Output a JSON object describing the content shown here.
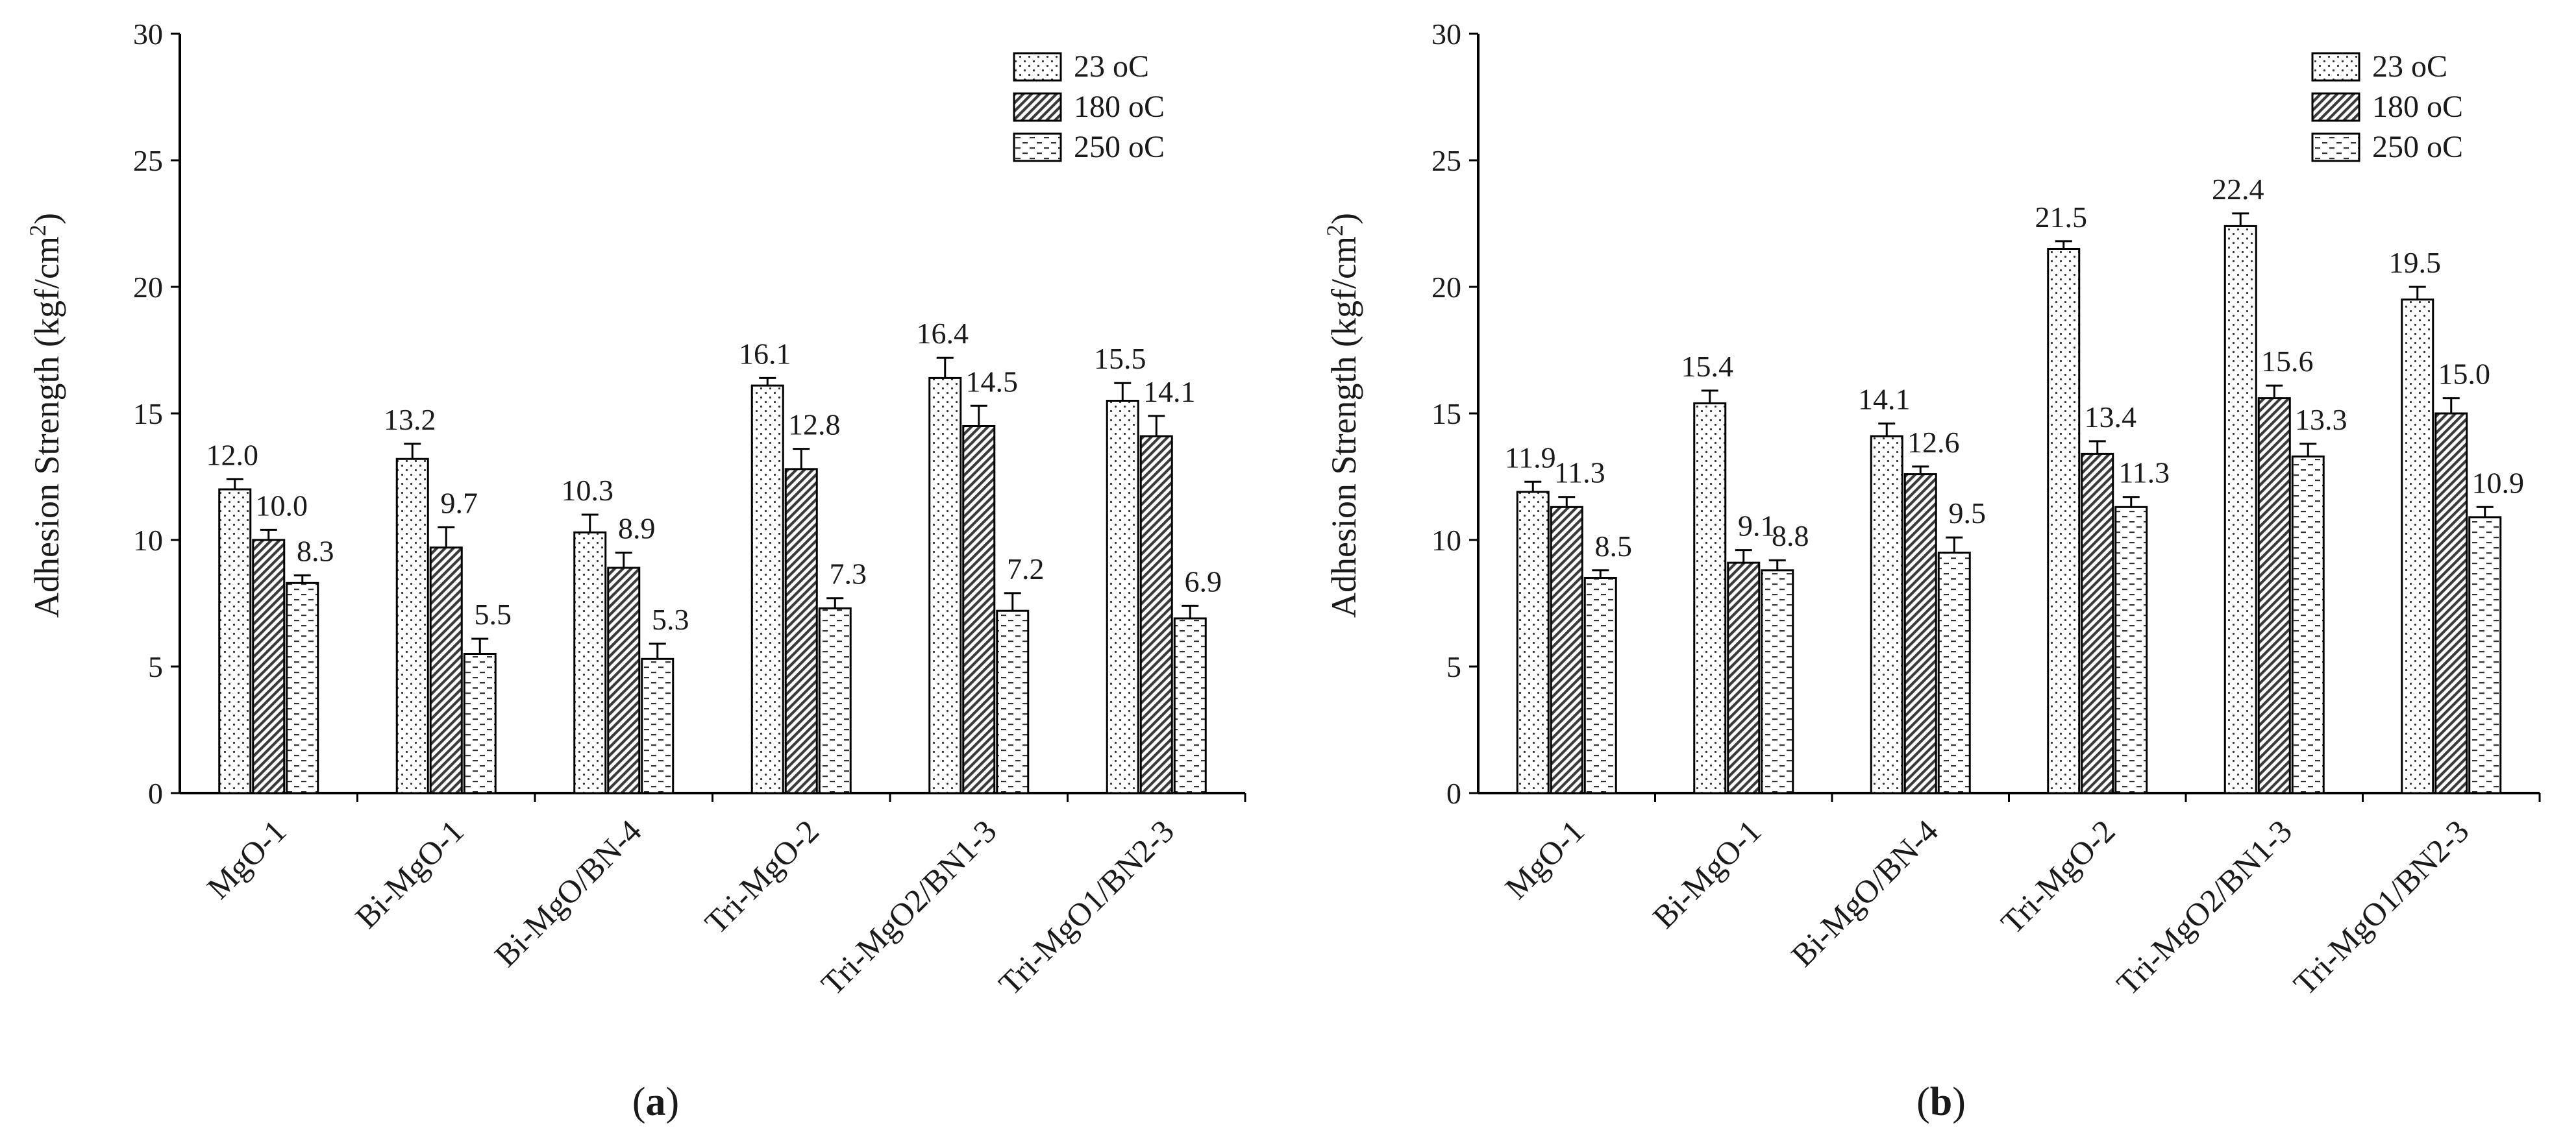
{
  "chart_data": [
    {
      "type": "bar",
      "panel_label": "(a)",
      "panel_letter": "a",
      "ylabel": "Adhesion Strength (kgf/cm²)",
      "ylabel_main": "Adhesion Strength (kgf/cm",
      "ylabel_sup": "2",
      "ylabel_tail": ")",
      "ylim": [
        0,
        30
      ],
      "yticks": [
        0,
        5,
        10,
        15,
        20,
        25,
        30
      ],
      "categories": [
        "MgO-1",
        "Bi-MgO-1",
        "Bi-MgO/BN-4",
        "Tri-MgO-2",
        "Tri-MgO2/BN1-3",
        "Tri-MgO1/BN2-3"
      ],
      "legend_position": "top-right",
      "series": [
        {
          "name": "23 oC",
          "values": [
            12.0,
            13.2,
            10.3,
            16.1,
            16.4,
            15.5
          ],
          "errors": [
            0.4,
            0.6,
            0.7,
            0.3,
            0.8,
            0.7
          ],
          "labels": [
            "12.0",
            "13.2",
            "10.3",
            "16.1",
            "16.4",
            "15.5"
          ]
        },
        {
          "name": "180 oC",
          "values": [
            10.0,
            9.7,
            8.9,
            12.8,
            14.5,
            14.1
          ],
          "errors": [
            0.4,
            0.8,
            0.6,
            0.8,
            0.8,
            0.8
          ],
          "labels": [
            "10.0",
            "9.7",
            "8.9",
            "12.8",
            "14.5",
            "14.1"
          ]
        },
        {
          "name": "250 oC",
          "values": [
            8.3,
            5.5,
            5.3,
            7.3,
            7.2,
            6.9
          ],
          "errors": [
            0.3,
            0.6,
            0.6,
            0.4,
            0.7,
            0.5
          ],
          "labels": [
            "8.3",
            "5.5",
            "5.3",
            "7.3",
            "7.2",
            "6.9"
          ]
        }
      ]
    },
    {
      "type": "bar",
      "panel_label": "(b)",
      "panel_letter": "b",
      "ylabel": "Adhesion Strength (kgf/cm²)",
      "ylabel_main": "Adhesion Strength (kgf/cm",
      "ylabel_sup": "2",
      "ylabel_tail": ")",
      "ylim": [
        0,
        30
      ],
      "yticks": [
        0,
        5,
        10,
        15,
        20,
        25,
        30
      ],
      "categories": [
        "MgO-1",
        "Bi-MgO-1",
        "Bi-MgO/BN-4",
        "Tri-MgO-2",
        "Tri-MgO2/BN1-3",
        "Tri-MgO1/BN2-3"
      ],
      "legend_position": "top-right",
      "series": [
        {
          "name": "23 oC",
          "values": [
            11.9,
            15.4,
            14.1,
            21.5,
            22.4,
            19.5
          ],
          "errors": [
            0.4,
            0.5,
            0.5,
            0.3,
            0.5,
            0.5
          ],
          "labels": [
            "11.9",
            "15.4",
            "14.1",
            "21.5",
            "22.4",
            "19.5"
          ]
        },
        {
          "name": "180 oC",
          "values": [
            11.3,
            9.1,
            12.6,
            13.4,
            15.6,
            15.0
          ],
          "errors": [
            0.4,
            0.5,
            0.3,
            0.5,
            0.5,
            0.6
          ],
          "labels": [
            "11.3",
            "9.1",
            "12.6",
            "13.4",
            "15.6",
            "15.0"
          ]
        },
        {
          "name": "250 oC",
          "values": [
            8.5,
            8.8,
            9.5,
            11.3,
            13.3,
            10.9
          ],
          "errors": [
            0.3,
            0.4,
            0.6,
            0.4,
            0.5,
            0.4
          ],
          "labels": [
            "8.5",
            "8.8",
            "9.5",
            "11.3",
            "13.3",
            "10.9"
          ]
        }
      ]
    }
  ]
}
